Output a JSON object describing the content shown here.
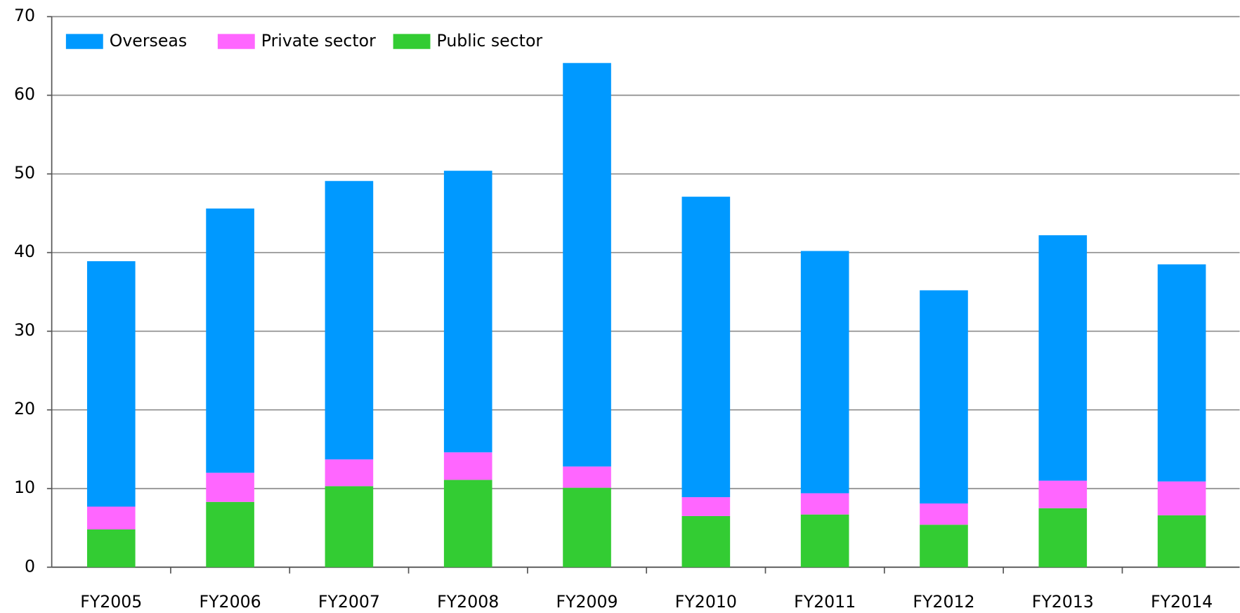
{
  "chart_data": {
    "type": "stacked_bar",
    "categories": [
      "FY2005",
      "FY2006",
      "FY2007",
      "FY2008",
      "FY2009",
      "FY2010",
      "FY2011",
      "FY2012",
      "FY2013",
      "FY2014"
    ],
    "series": [
      {
        "name": "Overseas",
        "color": "#0099ff",
        "values": [
          31.2,
          33.6,
          35.4,
          35.8,
          51.3,
          38.2,
          30.8,
          27.1,
          31.2,
          27.6
        ]
      },
      {
        "name": "Private sector",
        "color": "#ff66ff",
        "values": [
          2.9,
          3.7,
          3.4,
          3.5,
          2.7,
          2.4,
          2.7,
          2.7,
          3.5,
          4.3
        ]
      },
      {
        "name": "Public sector",
        "color": "#33cc33",
        "values": [
          4.8,
          8.3,
          10.3,
          11.1,
          10.1,
          6.5,
          6.7,
          5.4,
          7.5,
          6.6
        ]
      }
    ],
    "ylim": [
      0,
      70
    ],
    "yticks": [
      0,
      10,
      20,
      30,
      40,
      50,
      60,
      70
    ],
    "grid": true,
    "legend": "top-left"
  }
}
